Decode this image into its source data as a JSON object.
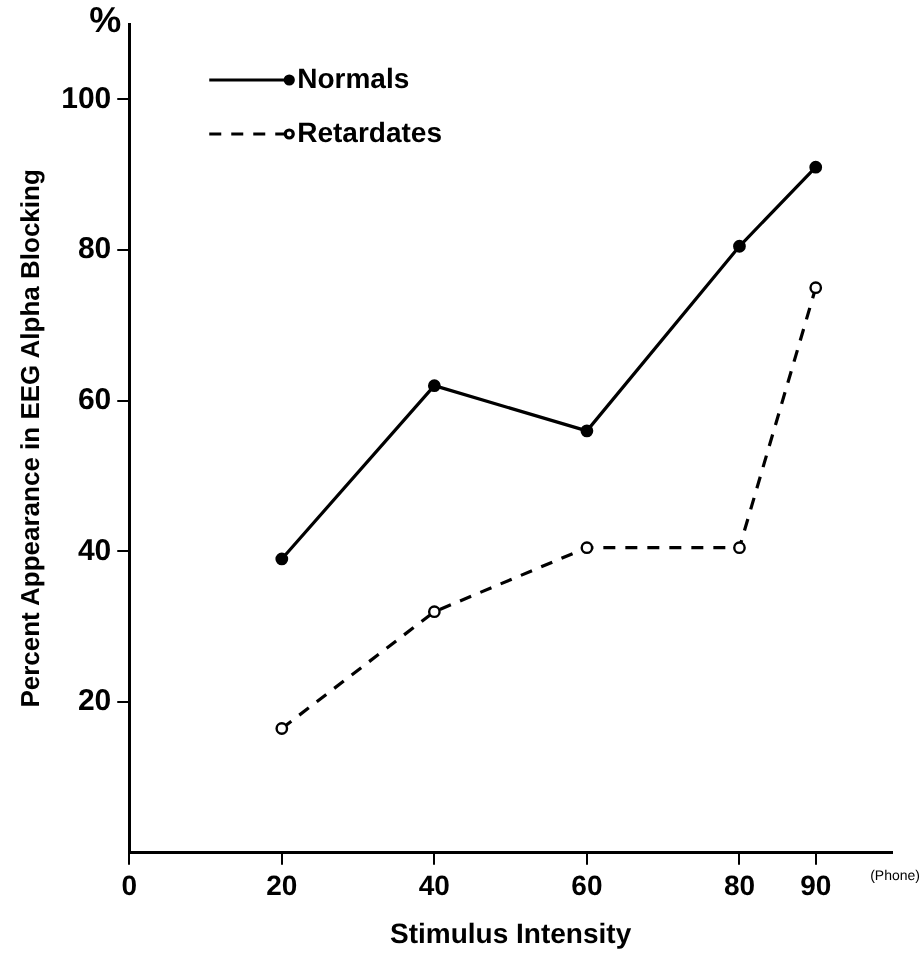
{
  "chart_data": {
    "type": "line",
    "xlabel": "Stimulus Intensity",
    "ylabel": "Percent Appearance in EEG Alpha Blocking",
    "x": [
      20,
      40,
      60,
      80,
      90
    ],
    "series": [
      {
        "name": "Normals",
        "color": "#000000",
        "values": [
          39,
          62,
          56,
          80.5,
          91
        ],
        "line_style": "solid",
        "marker": "circle"
      },
      {
        "name": "Retardates",
        "color": "#000000",
        "values": [
          16.5,
          32,
          40.5,
          40.5,
          75
        ],
        "line_style": "dashed",
        "marker": "circle"
      }
    ],
    "xlim": [
      0,
      100
    ],
    "xticks": [
      0,
      20,
      40,
      60,
      80,
      90
    ],
    "ylim": [
      0,
      110
    ],
    "yticks": [
      20,
      40,
      60,
      80,
      100
    ],
    "annotations": [
      "%",
      "(Phone)"
    ],
    "grid": false,
    "legend": "top left"
  }
}
